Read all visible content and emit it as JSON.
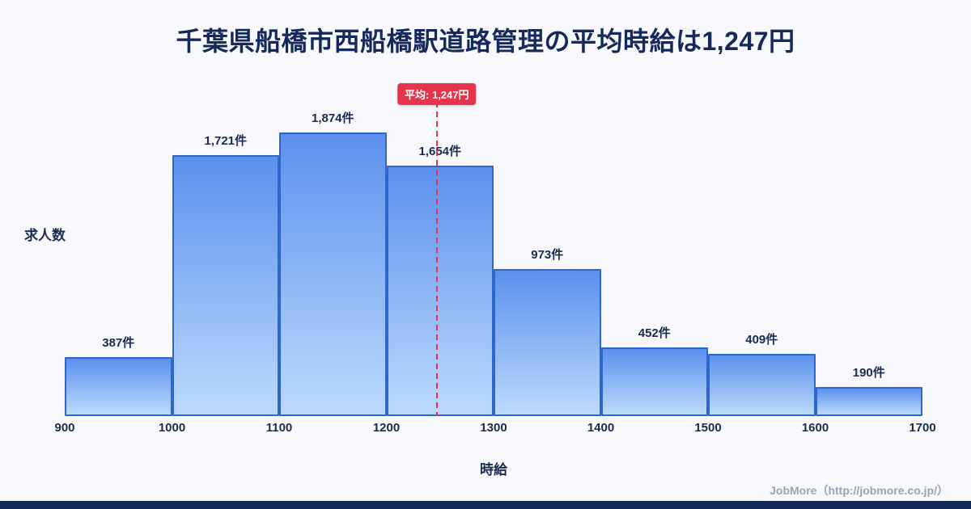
{
  "title": "千葉県船橋市西船橋駅道路管理の平均時給は1,247円",
  "footer": {
    "credit": "JobMore（http://jobmore.co.jp/）"
  },
  "colors": {
    "background": "#f7f9fc",
    "title_text": "#16295c",
    "bar_border": "#2f66cc",
    "bar_gradient_top": "#5b90ee",
    "bar_gradient_bottom": "#bcdafb",
    "average_accent": "#e8344a",
    "footer_text": "#9aa3b2",
    "bottom_strip": "#14295a"
  },
  "chart_data": {
    "type": "bar",
    "subtype": "histogram",
    "title": "千葉県船橋市西船橋駅道路管理の平均時給は1,247円",
    "xlabel": "時給",
    "ylabel": "求人数",
    "bin_edges": [
      900,
      1000,
      1100,
      1200,
      1300,
      1400,
      1500,
      1600,
      1700
    ],
    "x_tick_labels": [
      "900",
      "1000",
      "1100",
      "1200",
      "1300",
      "1400",
      "1500",
      "1600",
      "1700"
    ],
    "values": [
      387,
      1721,
      1874,
      1654,
      973,
      452,
      409,
      190
    ],
    "bar_labels": [
      "387件",
      "1,721件",
      "1,874件",
      "1,654件",
      "973件",
      "452件",
      "409件",
      "190件"
    ],
    "ylim": [
      0,
      2000
    ],
    "grid": false,
    "legend": false,
    "average_line": {
      "x": 1247,
      "label": "平均: 1,247円",
      "style": "dashed"
    }
  }
}
